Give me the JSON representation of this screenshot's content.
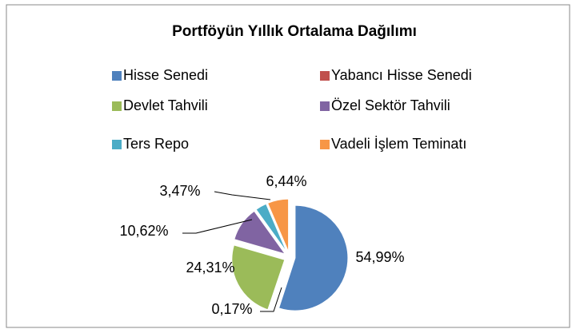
{
  "chart_data": {
    "type": "pie",
    "title": "Portföyün Yıllık Ortalama Dağılımı",
    "categories": [
      "Hisse Senedi",
      "Yabancı Hisse Senedi",
      "Devlet Tahvili",
      "Özel Sektör Tahvili",
      "Ters Repo",
      "Vadeli İşlem Teminatı"
    ],
    "values": [
      54.99,
      0.17,
      24.31,
      10.62,
      3.47,
      6.44
    ],
    "value_labels": [
      "54,99%",
      "0,17%",
      "24,31%",
      "10,62%",
      "3,47%",
      "6,44%"
    ],
    "colors": [
      "#4F81BD",
      "#C0504D",
      "#9BBB59",
      "#8064A2",
      "#4BACC6",
      "#F79646"
    ]
  }
}
